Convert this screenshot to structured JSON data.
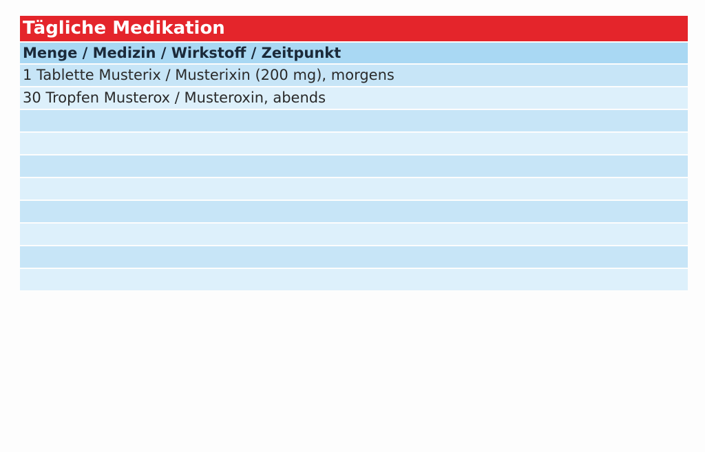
{
  "medication_table": {
    "title": "Tägliche Medikation",
    "header": "Menge / Medizin / Wirkstoff / Zeitpunkt",
    "rows": [
      "1 Tablette Musterix / Musterixin (200 mg), morgens",
      "30 Tropfen Musterox / Musteroxin, abends",
      "",
      "",
      "",
      "",
      "",
      "",
      "",
      ""
    ]
  },
  "colors": {
    "title_background": "#e4252b",
    "header_background": "#a9d8f3",
    "row_background_a": "#c7e5f7",
    "row_background_b": "#ddf0fb"
  }
}
